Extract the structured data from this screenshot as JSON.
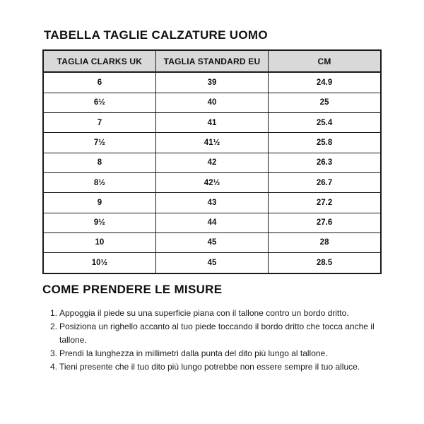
{
  "title": "TABELLA TAGLIE CALZATURE UOMO",
  "size_table": {
    "columns": [
      "TAGLIA CLARKS UK",
      "TAGLIA STANDARD EU",
      "CM"
    ],
    "rows": [
      [
        "6",
        "39",
        "24.9"
      ],
      [
        "6½",
        "40",
        "25"
      ],
      [
        "7",
        "41",
        "25.4"
      ],
      [
        "7½",
        "41½",
        "25.8"
      ],
      [
        "8",
        "42",
        "26.3"
      ],
      [
        "8½",
        "42½",
        "26.7"
      ],
      [
        "9",
        "43",
        "27.2"
      ],
      [
        "9½",
        "44",
        "27.6"
      ],
      [
        "10",
        "45",
        "28"
      ],
      [
        "10½",
        "45",
        "28.5"
      ]
    ]
  },
  "measure_section": {
    "title": "COME PRENDERE LE MISURE",
    "steps": [
      {
        "num": "1.",
        "text": "Appoggia il piede su una superficie piana con il tallone contro un bordo dritto."
      },
      {
        "num": "2.",
        "text": "Posiziona un righello accanto al tuo piede toccando il bordo dritto che tocca anche il tallone."
      },
      {
        "num": "3.",
        "text": "Prendi la lunghezza in millimetri dalla punta del dito più lungo al tallone."
      },
      {
        "num": "4.",
        "text": "Tieni presente che il tuo dito più lungo potrebbe non essere sempre il tuo alluce."
      }
    ]
  },
  "colors": {
    "header_bg": "#d9d9d9",
    "border": "#1a1a1a",
    "text": "#111111"
  }
}
